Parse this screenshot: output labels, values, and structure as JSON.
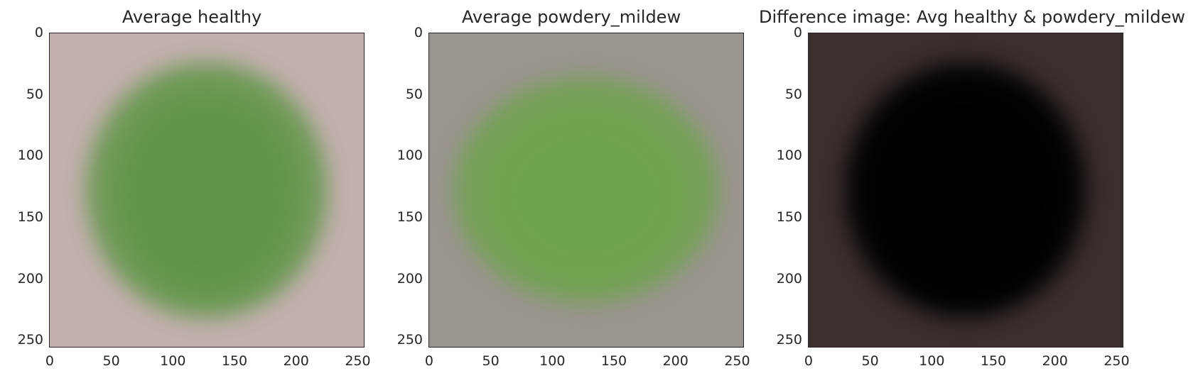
{
  "chart_data": [
    {
      "type": "image",
      "title": "Average healthy",
      "xlim": [
        0,
        255
      ],
      "ylim": [
        255,
        0
      ],
      "xticks": [
        "0",
        "50",
        "100",
        "150",
        "200",
        "250"
      ],
      "yticks": [
        "0",
        "50",
        "100",
        "150",
        "200",
        "250"
      ],
      "colors": {
        "background": "#c1b0ac",
        "leaf": "#5f9546",
        "vein": "#77a85c"
      }
    },
    {
      "type": "image",
      "title": "Average powdery_mildew",
      "xlim": [
        0,
        255
      ],
      "ylim": [
        255,
        0
      ],
      "xticks": [
        "0",
        "50",
        "100",
        "150",
        "200",
        "250"
      ],
      "yticks": [
        "0",
        "50",
        "100",
        "150",
        "200",
        "250"
      ],
      "colors": {
        "background": "#9b958f",
        "leaf": "#6ea34e",
        "vein": "#80b060"
      }
    },
    {
      "type": "image",
      "title": "Difference image: Avg healthy & powdery_mildew",
      "xlim": [
        0,
        255
      ],
      "ylim": [
        255,
        0
      ],
      "xticks": [
        "0",
        "50",
        "100",
        "150",
        "200",
        "250"
      ],
      "yticks": [
        "0",
        "50",
        "100",
        "150",
        "200",
        "250"
      ],
      "colors": {
        "background": "#3a2f2c",
        "leaf": "#050505",
        "vein": "#1a2e14"
      }
    }
  ]
}
